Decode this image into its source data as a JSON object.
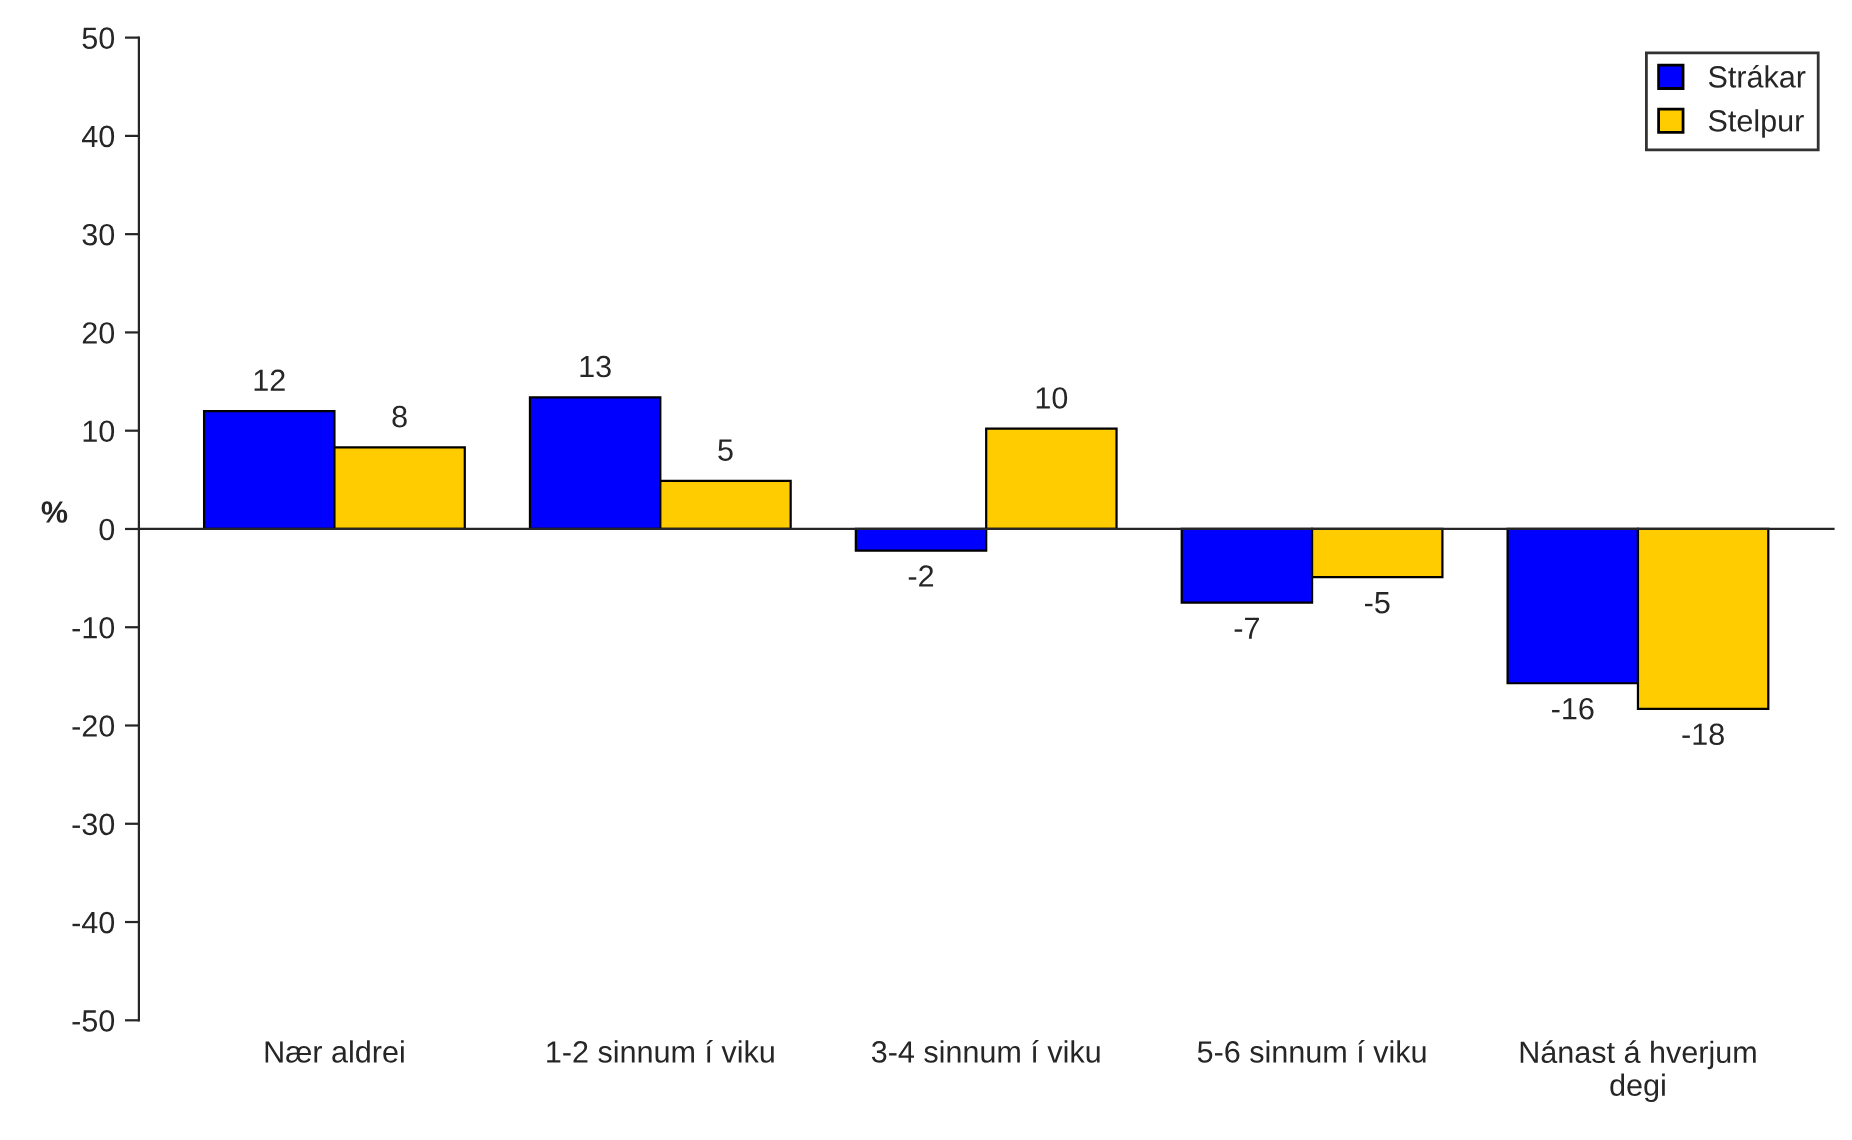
{
  "chart_data": {
    "type": "bar",
    "ylabel": "%",
    "categories": [
      "Nær aldrei",
      "1-2 sinnum í viku",
      "3-4 sinnum í viku",
      "5-6 sinnum í viku",
      "Nánast á hverjum\ndegi"
    ],
    "series": [
      {
        "name": "Strákar",
        "color": "#0000ff",
        "values": [
          12.0,
          13.4,
          -2.2,
          -7.5,
          -15.7
        ],
        "value_labels": [
          "12",
          "13",
          "-2",
          "-7",
          "-16"
        ]
      },
      {
        "name": "Stelpur",
        "color": "#ffcc00",
        "values": [
          8.3,
          4.9,
          10.2,
          -4.9,
          -18.3
        ],
        "value_labels": [
          "8",
          "5",
          "10",
          "-5",
          "-18"
        ]
      }
    ],
    "ylim": [
      -50,
      50
    ],
    "yticks": [
      -50,
      -40,
      -30,
      -20,
      -10,
      0,
      10,
      20,
      30,
      40,
      50
    ],
    "legend": "top right"
  }
}
